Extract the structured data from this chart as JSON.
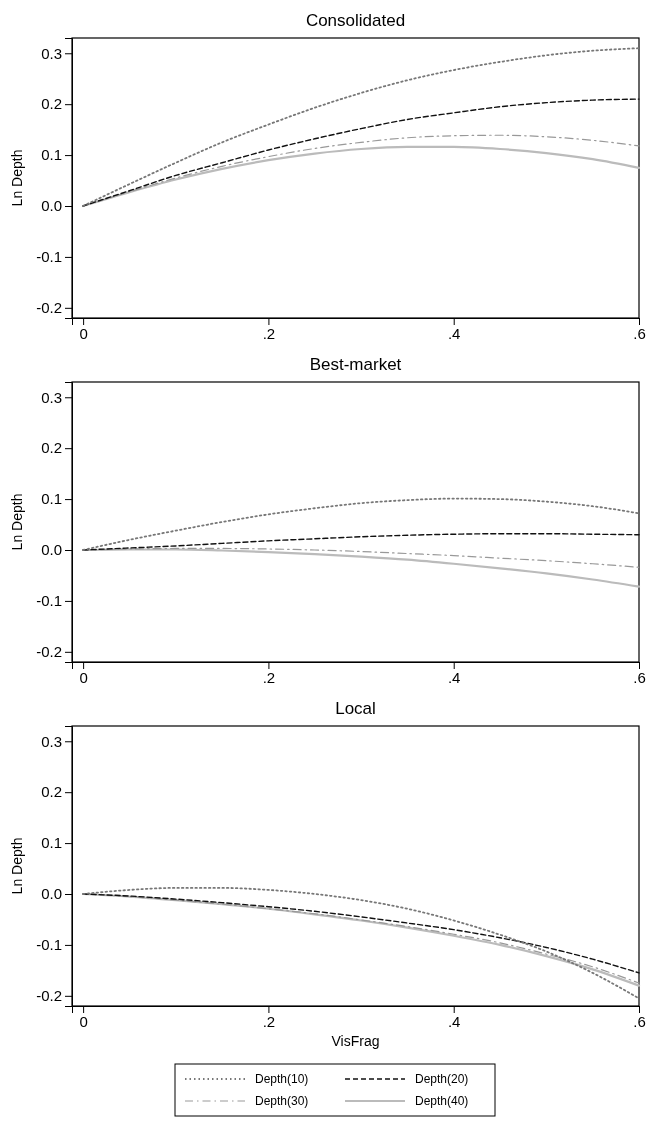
{
  "chart_data": [
    {
      "type": "line",
      "title": "Consolidated",
      "ylabel": "Ln Depth",
      "x": [
        0,
        0.05,
        0.1,
        0.15,
        0.2,
        0.25,
        0.3,
        0.35,
        0.4,
        0.45,
        0.5,
        0.55,
        0.6
      ],
      "xlim": [
        -0.012,
        0.6
      ],
      "ylim": [
        -0.22,
        0.33
      ],
      "xticks": [
        {
          "value": 0,
          "label": "0"
        },
        {
          "value": 0.2,
          "label": ".2"
        },
        {
          "value": 0.4,
          "label": ".4"
        },
        {
          "value": 0.6,
          "label": ".6"
        }
      ],
      "yticks": [
        {
          "value": -0.2,
          "label": "-0.2"
        },
        {
          "value": -0.1,
          "label": "-0.1"
        },
        {
          "value": 0,
          "label": "0.0"
        },
        {
          "value": 0.1,
          "label": "0.1"
        },
        {
          "value": 0.2,
          "label": "0.2"
        },
        {
          "value": 0.3,
          "label": "0.3"
        }
      ],
      "grid": false,
      "legend": false,
      "series": [
        {
          "color": "#777777",
          "line_style": "dotted",
          "values": [
            0,
            0.043,
            0.085,
            0.125,
            0.16,
            0.193,
            0.222,
            0.247,
            0.267,
            0.283,
            0.296,
            0.305,
            0.31
          ]
        },
        {
          "color": "#111111",
          "line_style": "dashed",
          "values": [
            0,
            0.03,
            0.06,
            0.085,
            0.11,
            0.132,
            0.152,
            0.17,
            0.183,
            0.195,
            0.203,
            0.208,
            0.21
          ]
        },
        {
          "color": "#999999",
          "line_style": "dashdot",
          "values": [
            0,
            0.028,
            0.055,
            0.078,
            0.097,
            0.113,
            0.125,
            0.134,
            0.138,
            0.139,
            0.136,
            0.129,
            0.118
          ]
        },
        {
          "color": "#bbbbbb",
          "line_style": "solid",
          "values": [
            0,
            0.027,
            0.052,
            0.073,
            0.09,
            0.103,
            0.112,
            0.116,
            0.116,
            0.112,
            0.104,
            0.092,
            0.075
          ]
        }
      ]
    },
    {
      "type": "line",
      "title": "Best-market",
      "ylabel": "Ln Depth",
      "x": [
        0,
        0.05,
        0.1,
        0.15,
        0.2,
        0.25,
        0.3,
        0.35,
        0.4,
        0.45,
        0.5,
        0.55,
        0.6
      ],
      "xlim": [
        -0.012,
        0.6
      ],
      "ylim": [
        -0.22,
        0.33
      ],
      "xticks": [
        {
          "value": 0,
          "label": "0"
        },
        {
          "value": 0.2,
          "label": ".2"
        },
        {
          "value": 0.4,
          "label": ".4"
        },
        {
          "value": 0.6,
          "label": ".6"
        }
      ],
      "yticks": [
        {
          "value": -0.2,
          "label": "-0.2"
        },
        {
          "value": -0.1,
          "label": "-0.1"
        },
        {
          "value": 0,
          "label": "0.0"
        },
        {
          "value": 0.1,
          "label": "0.1"
        },
        {
          "value": 0.2,
          "label": "0.2"
        },
        {
          "value": 0.3,
          "label": "0.3"
        }
      ],
      "grid": false,
      "legend": false,
      "series": [
        {
          "color": "#777777",
          "line_style": "dotted",
          "values": [
            0,
            0.02,
            0.038,
            0.055,
            0.07,
            0.082,
            0.092,
            0.098,
            0.101,
            0.1,
            0.095,
            0.086,
            0.072
          ]
        },
        {
          "color": "#111111",
          "line_style": "dashed",
          "values": [
            0,
            0.004,
            0.008,
            0.013,
            0.018,
            0.022,
            0.026,
            0.029,
            0.031,
            0.032,
            0.032,
            0.031,
            0.03
          ]
        },
        {
          "color": "#999999",
          "line_style": "dashdot",
          "values": [
            0,
            0.002,
            0.003,
            0.003,
            0.002,
            0,
            -0.003,
            -0.007,
            -0.011,
            -0.016,
            -0.021,
            -0.027,
            -0.034
          ]
        },
        {
          "color": "#bbbbbb",
          "line_style": "solid",
          "values": [
            0,
            0.001,
            0.001,
            -0.001,
            -0.004,
            -0.008,
            -0.013,
            -0.019,
            -0.027,
            -0.036,
            -0.046,
            -0.058,
            -0.072
          ]
        }
      ]
    },
    {
      "type": "line",
      "title": "Local",
      "ylabel": "Ln Depth",
      "xlabel": "VisFrag",
      "x": [
        0,
        0.05,
        0.1,
        0.15,
        0.2,
        0.25,
        0.3,
        0.35,
        0.4,
        0.45,
        0.5,
        0.55,
        0.6
      ],
      "xlim": [
        -0.012,
        0.6
      ],
      "ylim": [
        -0.22,
        0.33
      ],
      "xticks": [
        {
          "value": 0,
          "label": "0"
        },
        {
          "value": 0.2,
          "label": ".2"
        },
        {
          "value": 0.4,
          "label": ".4"
        },
        {
          "value": 0.6,
          "label": ".6"
        }
      ],
      "yticks": [
        {
          "value": -0.2,
          "label": "-0.2"
        },
        {
          "value": -0.1,
          "label": "-0.1"
        },
        {
          "value": 0,
          "label": "0.0"
        },
        {
          "value": 0.1,
          "label": "0.1"
        },
        {
          "value": 0.2,
          "label": "0.2"
        },
        {
          "value": 0.3,
          "label": "0.3"
        }
      ],
      "grid": false,
      "legend": "bottom",
      "series": [
        {
          "name": "Depth(10)",
          "color": "#777777",
          "line_style": "dotted",
          "values": [
            0,
            0.008,
            0.012,
            0.012,
            0.008,
            0,
            -0.012,
            -0.029,
            -0.052,
            -0.08,
            -0.113,
            -0.155,
            -0.205
          ]
        },
        {
          "name": "Depth(20)",
          "color": "#111111",
          "line_style": "dashed",
          "values": [
            0,
            -0.004,
            -0.01,
            -0.017,
            -0.025,
            -0.034,
            -0.045,
            -0.057,
            -0.07,
            -0.086,
            -0.105,
            -0.128,
            -0.155
          ]
        },
        {
          "name": "Depth(30)",
          "color": "#999999",
          "line_style": "dashdot",
          "values": [
            0,
            -0.005,
            -0.012,
            -0.02,
            -0.029,
            -0.039,
            -0.051,
            -0.064,
            -0.079,
            -0.096,
            -0.118,
            -0.143,
            -0.175
          ]
        },
        {
          "name": "Depth(40)",
          "color": "#bbbbbb",
          "line_style": "solid",
          "values": [
            0,
            -0.005,
            -0.012,
            -0.02,
            -0.029,
            -0.04,
            -0.052,
            -0.066,
            -0.082,
            -0.1,
            -0.122,
            -0.148,
            -0.18
          ]
        }
      ]
    }
  ]
}
